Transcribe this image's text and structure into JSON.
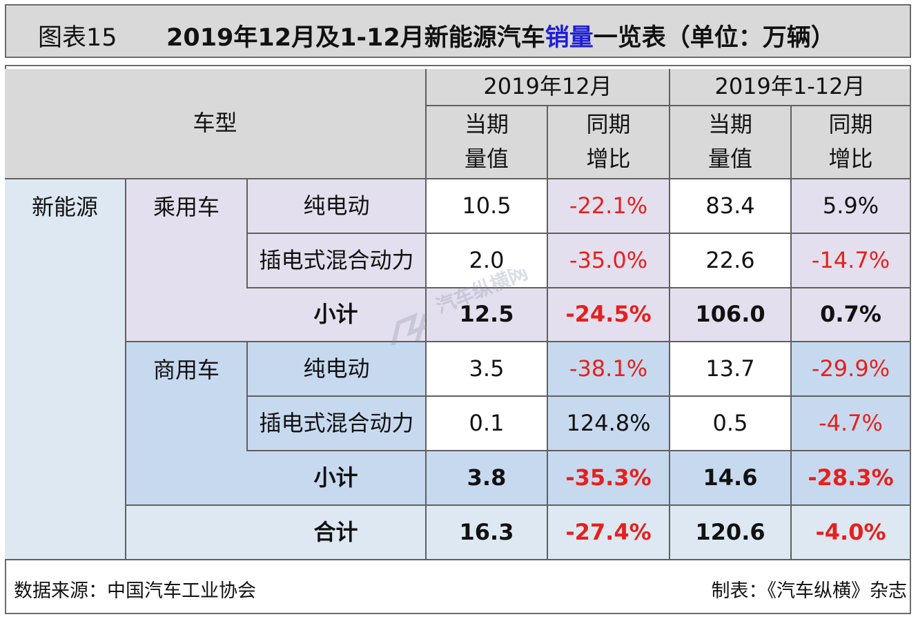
{
  "title": {
    "number": "图表15",
    "main_prefix": "2019年12月及1-12月新能源汽车",
    "main_highlight": "销量",
    "main_suffix": "一览表（单位：万辆）"
  },
  "header": {
    "vehicle_type": "车型",
    "period_dec": "2019年12月",
    "period_ytd": "2019年1-12月",
    "col_current": "当期\n量值",
    "col_yoy": "同期\n增比"
  },
  "rows": {
    "category": "新能源",
    "passenger": "乘用车",
    "commercial": "商用车",
    "bev": "纯电动",
    "phev": "插电式混合动力",
    "subtotal": "小计",
    "total": "合计"
  },
  "values": {
    "passenger_bev": [
      "10.5",
      "-22.1%",
      "83.4",
      "5.9%"
    ],
    "passenger_phev": [
      "2.0",
      "-35.0%",
      "22.6",
      "-14.7%"
    ],
    "passenger_subtotal": [
      "12.5",
      "-24.5%",
      "106.0",
      "0.7%"
    ],
    "commercial_bev": [
      "3.5",
      "-38.1%",
      "13.7",
      "-29.9%"
    ],
    "commercial_phev": [
      "0.1",
      "124.8%",
      "0.5",
      "-4.7%"
    ],
    "commercial_subtotal": [
      "3.8",
      "-35.3%",
      "14.6",
      "-28.3%"
    ],
    "total": [
      "16.3",
      "-27.4%",
      "120.6",
      "-4.0%"
    ]
  },
  "footer": {
    "source": "数据来源：中国汽车工业协会",
    "maker": "制表：《汽车纵横》杂志"
  },
  "watermark": {
    "text": "汽车纵横网"
  },
  "colors": {
    "header_gray": "#d9d9d9",
    "light_blue": "#dde8f2",
    "light_purple": "#e4dfee",
    "medium_blue": "#c7d9ef",
    "negative_red": "#e6201c",
    "highlight_blue": "#1f1fd6"
  }
}
